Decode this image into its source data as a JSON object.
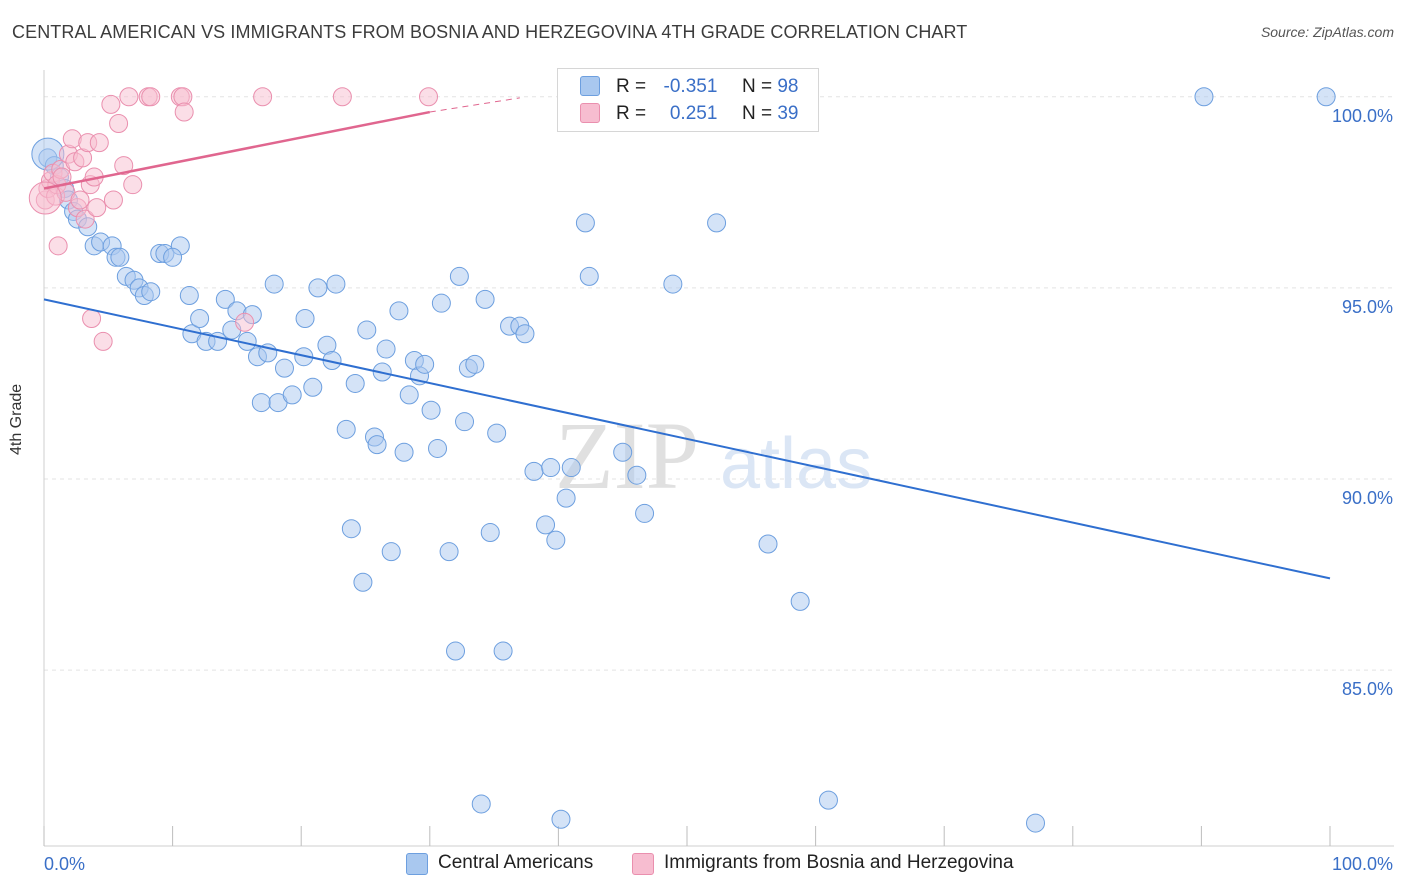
{
  "title": "CENTRAL AMERICAN VS IMMIGRANTS FROM BOSNIA AND HERZEGOVINA 4TH GRADE CORRELATION CHART",
  "source": "Source: ZipAtlas.com",
  "watermark": {
    "zip": "ZIP",
    "atlas": "atlas"
  },
  "legend_top": {
    "rows": [
      {
        "r_label": "R =",
        "r_value": "-0.351",
        "n_label": "N =",
        "n_value": "98",
        "color": "#a9c8ef",
        "border": "#6d9fdf"
      },
      {
        "r_label": "R =",
        "r_value": "0.251",
        "n_label": "N =",
        "n_value": "39",
        "color": "#f7bdd0",
        "border": "#ea8fae"
      }
    ]
  },
  "legend_bottom": {
    "items": [
      {
        "label": "Central Americans",
        "color": "#a9c8ef",
        "border": "#6d9fdf"
      },
      {
        "label": "Immigrants from Bosnia and Herzegovina",
        "color": "#f7bdd0",
        "border": "#ea8fae"
      }
    ]
  },
  "chart_data": {
    "type": "scatter",
    "title": "CENTRAL AMERICAN VS IMMIGRANTS FROM BOSNIA AND HERZEGOVINA 4TH GRADE CORRELATION CHART",
    "xlabel": "",
    "ylabel": "4th Grade",
    "xlim": [
      0,
      100
    ],
    "ylim": [
      80.4,
      100.7
    ],
    "x_tick_labels": [
      "0.0%",
      "100.0%"
    ],
    "y_ticks": [
      85,
      90,
      95,
      100
    ],
    "y_tick_labels": [
      "85.0%",
      "90.0%",
      "95.0%",
      "100.0%"
    ],
    "grid": true,
    "series": [
      {
        "name": "Central Americans",
        "color": "#a9c8ef",
        "stroke": "#6d9fdf",
        "trend": {
          "x": [
            0,
            100
          ],
          "y": [
            94.7,
            87.4
          ],
          "color": "#2f6fd0"
        },
        "points": [
          [
            0.3,
            98.4
          ],
          [
            0.8,
            98.2
          ],
          [
            1.2,
            97.9
          ],
          [
            1.6,
            97.6
          ],
          [
            1.9,
            97.3
          ],
          [
            2.3,
            97.0
          ],
          [
            2.6,
            96.8
          ],
          [
            3.4,
            96.6
          ],
          [
            3.9,
            96.1
          ],
          [
            4.4,
            96.2
          ],
          [
            5.3,
            96.1
          ],
          [
            5.6,
            95.8
          ],
          [
            5.9,
            95.8
          ],
          [
            6.4,
            95.3
          ],
          [
            7.0,
            95.2
          ],
          [
            7.4,
            95.0
          ],
          [
            7.8,
            94.8
          ],
          [
            8.3,
            94.9
          ],
          [
            9.0,
            95.9
          ],
          [
            9.4,
            95.9
          ],
          [
            10.6,
            96.1
          ],
          [
            10.0,
            95.8
          ],
          [
            11.3,
            94.8
          ],
          [
            11.5,
            93.8
          ],
          [
            12.1,
            94.2
          ],
          [
            12.6,
            93.6
          ],
          [
            13.5,
            93.6
          ],
          [
            14.1,
            94.7
          ],
          [
            14.6,
            93.9
          ],
          [
            15.0,
            94.4
          ],
          [
            15.8,
            93.6
          ],
          [
            16.2,
            94.3
          ],
          [
            16.6,
            93.2
          ],
          [
            16.9,
            92.0
          ],
          [
            17.4,
            93.3
          ],
          [
            17.9,
            95.1
          ],
          [
            18.2,
            92.0
          ],
          [
            18.7,
            92.9
          ],
          [
            19.3,
            92.2
          ],
          [
            20.2,
            93.2
          ],
          [
            20.3,
            94.2
          ],
          [
            20.9,
            92.4
          ],
          [
            21.3,
            95.0
          ],
          [
            22.0,
            93.5
          ],
          [
            22.4,
            93.1
          ],
          [
            22.7,
            95.1
          ],
          [
            23.5,
            91.3
          ],
          [
            23.9,
            88.7
          ],
          [
            24.2,
            92.5
          ],
          [
            24.8,
            87.3
          ],
          [
            25.1,
            93.9
          ],
          [
            25.7,
            91.1
          ],
          [
            25.9,
            90.9
          ],
          [
            26.3,
            92.8
          ],
          [
            26.6,
            93.4
          ],
          [
            27.0,
            88.1
          ],
          [
            27.6,
            94.4
          ],
          [
            28.0,
            90.7
          ],
          [
            28.4,
            92.2
          ],
          [
            28.8,
            93.1
          ],
          [
            29.2,
            92.7
          ],
          [
            29.6,
            93.0
          ],
          [
            30.1,
            91.8
          ],
          [
            30.6,
            90.8
          ],
          [
            30.9,
            94.6
          ],
          [
            31.5,
            88.1
          ],
          [
            32.0,
            85.5
          ],
          [
            32.3,
            95.3
          ],
          [
            32.7,
            91.5
          ],
          [
            33.0,
            92.9
          ],
          [
            33.5,
            93.0
          ],
          [
            34.0,
            81.5
          ],
          [
            34.3,
            94.7
          ],
          [
            34.7,
            88.6
          ],
          [
            35.2,
            91.2
          ],
          [
            35.7,
            85.5
          ],
          [
            36.2,
            94.0
          ],
          [
            37.0,
            94.0
          ],
          [
            37.4,
            93.8
          ],
          [
            38.1,
            90.2
          ],
          [
            39.0,
            88.8
          ],
          [
            39.4,
            90.3
          ],
          [
            39.8,
            88.4
          ],
          [
            40.2,
            81.1
          ],
          [
            40.6,
            89.5
          ],
          [
            41.0,
            90.3
          ],
          [
            42.1,
            96.7
          ],
          [
            42.4,
            95.3
          ],
          [
            45.0,
            90.7
          ],
          [
            46.1,
            90.1
          ],
          [
            46.7,
            89.1
          ],
          [
            48.9,
            95.1
          ],
          [
            51.5,
            100.0
          ],
          [
            52.3,
            96.7
          ],
          [
            56.3,
            88.3
          ],
          [
            58.8,
            86.8
          ],
          [
            61.0,
            81.6
          ],
          [
            77.1,
            81.0
          ],
          [
            90.2,
            100.0
          ],
          [
            99.7,
            100.0
          ]
        ]
      },
      {
        "name": "Immigrants from Bosnia and Herzegovina",
        "color": "#f7bdd0",
        "stroke": "#ea8fae",
        "trend": {
          "x": [
            0,
            30
          ],
          "y": [
            97.6,
            99.6
          ],
          "dashed_to": [
            37,
            99.97
          ],
          "color": "#e0668f"
        },
        "points": [
          [
            0.1,
            97.3
          ],
          [
            0.3,
            97.6
          ],
          [
            0.5,
            97.8
          ],
          [
            0.7,
            98.0
          ],
          [
            0.9,
            97.4
          ],
          [
            1.0,
            97.7
          ],
          [
            1.1,
            96.1
          ],
          [
            1.3,
            98.1
          ],
          [
            1.4,
            97.9
          ],
          [
            1.7,
            97.5
          ],
          [
            1.9,
            98.5
          ],
          [
            2.2,
            98.9
          ],
          [
            2.4,
            98.3
          ],
          [
            2.6,
            97.1
          ],
          [
            2.8,
            97.3
          ],
          [
            3.0,
            98.4
          ],
          [
            3.2,
            96.8
          ],
          [
            3.4,
            98.8
          ],
          [
            3.6,
            97.7
          ],
          [
            3.7,
            94.2
          ],
          [
            3.9,
            97.9
          ],
          [
            4.1,
            97.1
          ],
          [
            4.3,
            98.8
          ],
          [
            4.6,
            93.6
          ],
          [
            5.2,
            99.8
          ],
          [
            5.4,
            97.3
          ],
          [
            5.8,
            99.3
          ],
          [
            6.2,
            98.2
          ],
          [
            6.6,
            100.0
          ],
          [
            6.9,
            97.7
          ],
          [
            8.1,
            100.0
          ],
          [
            8.3,
            100.0
          ],
          [
            10.6,
            100.0
          ],
          [
            10.8,
            100.0
          ],
          [
            10.9,
            99.6
          ],
          [
            15.6,
            94.1
          ],
          [
            17.0,
            100.0
          ],
          [
            23.2,
            100.0
          ],
          [
            29.9,
            100.0
          ]
        ]
      }
    ]
  }
}
